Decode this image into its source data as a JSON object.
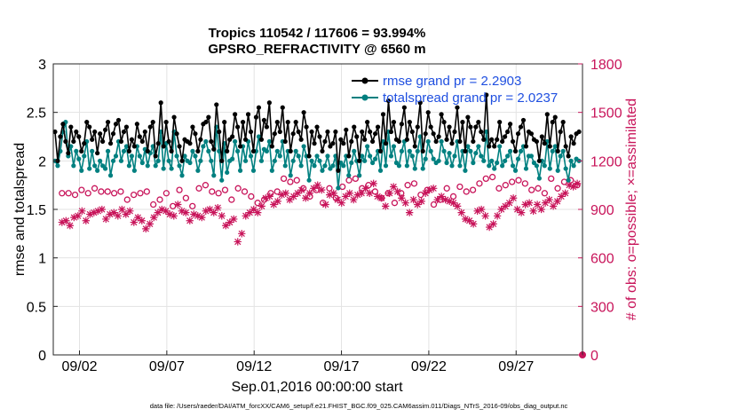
{
  "chart_data": {
    "type": "line",
    "title_line1": "Tropics 110542 / 117606 = 93.994%",
    "title_line2": "GPSRO_REFRACTIVITY @ 6560 m",
    "xlabel": "Sep.01,2016 00:00:00 start",
    "ylabel_left": "rmse and totalspread",
    "ylabel_right": "# of obs: o=possible; ×=assimilated",
    "x_ticks": [
      "09/02",
      "09/07",
      "09/12",
      "09/17",
      "09/22",
      "09/27"
    ],
    "y_left_ticks": [
      "0",
      "0.5",
      "1",
      "1.5",
      "2",
      "2.5",
      "3"
    ],
    "y_right_ticks": [
      "0",
      "300",
      "600",
      "900",
      "1200",
      "1500",
      "1800"
    ],
    "ylim_left": [
      0,
      3
    ],
    "ylim_right": [
      0,
      1800
    ],
    "xlim_days": [
      0.5,
      30.8
    ],
    "footnote": "data file: /Users/raeder/DAI/ATM_forcXX/CAM6_setup/f.e21.FHIST_BGC.f09_025.CAM6assim.011/Diags_NTrS_2016-09/obs_diag_output.nc",
    "colors": {
      "rmse": "#000000",
      "spread": "#008080",
      "obs": "#c8145a",
      "legend_text": "#1f4fe0"
    },
    "legend": [
      {
        "name": "rmse",
        "label": "rmse grand pr = 2.2903"
      },
      {
        "name": "spread",
        "label": "totalspread grand pr = 2.0237"
      }
    ],
    "series": [
      {
        "name": "rmse",
        "values": [
          2.3,
          2.0,
          2.25,
          2.38,
          2.2,
          2.08,
          2.35,
          2.2,
          2.3,
          2.25,
          2.1,
          2.18,
          2.4,
          2.35,
          2.22,
          2.3,
          2.08,
          2.28,
          2.2,
          2.32,
          2.4,
          2.18,
          2.28,
          2.38,
          2.42,
          2.2,
          2.3,
          2.35,
          2.1,
          2.22,
          2.15,
          2.38,
          2.25,
          2.2,
          2.3,
          2.1,
          2.35,
          2.4,
          2.05,
          2.18,
          2.6,
          2.15,
          2.4,
          2.2,
          2.1,
          2.45,
          2.28,
          2.15,
          2.0,
          2.22,
          2.2,
          2.18,
          2.35,
          2.28,
          2.1,
          2.22,
          2.38,
          2.4,
          2.45,
          2.2,
          2.12,
          2.58,
          2.3,
          2.0,
          2.4,
          2.1,
          2.22,
          2.25,
          2.48,
          2.35,
          2.15,
          2.4,
          2.22,
          2.48,
          2.3,
          2.1,
          2.45,
          2.55,
          2.22,
          2.42,
          2.35,
          2.6,
          2.15,
          2.28,
          2.4,
          2.3,
          2.55,
          2.2,
          2.4,
          2.1,
          2.28,
          2.4,
          2.3,
          2.22,
          2.5,
          2.35,
          2.05,
          2.3,
          2.18,
          2.35,
          2.25,
          2.1,
          2.2,
          2.3,
          2.15,
          2.18,
          2.3,
          1.9,
          2.22,
          2.18,
          2.32,
          2.05,
          2.2,
          2.35,
          2.25,
          2.0,
          2.3,
          2.22,
          2.4,
          2.3,
          2.2,
          2.28,
          2.35,
          2.1,
          2.48,
          2.18,
          2.62,
          2.3,
          2.4,
          2.22,
          2.2,
          2.38,
          2.55,
          2.22,
          2.4,
          2.3,
          2.15,
          2.35,
          2.6,
          2.1,
          2.28,
          2.5,
          2.35,
          2.28,
          2.2,
          2.25,
          2.48,
          2.4,
          2.22,
          2.35,
          2.18,
          2.3,
          2.55,
          2.2,
          2.4,
          2.1,
          2.45,
          2.35,
          2.2,
          2.35,
          2.4,
          2.3,
          2.22,
          2.68,
          2.15,
          2.22,
          2.15,
          2.22,
          2.4,
          2.2,
          2.25,
          2.3,
          2.38,
          2.2,
          2.1,
          2.28,
          2.35,
          2.42,
          2.15,
          2.3,
          2.28,
          2.22,
          2.2,
          2.0,
          2.25,
          2.18,
          2.48,
          2.15,
          2.4,
          2.45,
          2.1,
          2.3,
          2.4,
          2.15,
          2.05,
          2.25,
          2.18,
          2.28,
          2.3
        ]
      },
      {
        "name": "spread",
        "values": [
          2.0,
          1.95,
          2.1,
          2.3,
          2.4,
          2.05,
          2.15,
          1.95,
          2.1,
          2.02,
          1.9,
          2.05,
          2.2,
          1.92,
          2.1,
          1.95,
          1.9,
          2.0,
          1.95,
          1.92,
          2.1,
          1.85,
          2.0,
          2.05,
          2.2,
          2.0,
          2.1,
          2.15,
          1.95,
          2.05,
          1.9,
          2.15,
          2.05,
          1.98,
          2.12,
          1.95,
          2.08,
          2.15,
          1.95,
          2.0,
          2.3,
          1.92,
          2.18,
          2.0,
          1.92,
          2.3,
          2.05,
          1.95,
          1.85,
          2.05,
          2.0,
          1.98,
          2.1,
          2.05,
          1.9,
          2.0,
          2.15,
          2.2,
          2.1,
          2.0,
          1.85,
          2.35,
          2.1,
          1.8,
          2.18,
          1.88,
          2.0,
          2.02,
          2.2,
          2.1,
          1.9,
          2.15,
          2.0,
          2.2,
          2.05,
          1.9,
          2.1,
          2.25,
          2.0,
          2.12,
          2.1,
          2.2,
          1.9,
          2.0,
          2.1,
          2.05,
          2.2,
          1.95,
          2.1,
          1.85,
          2.0,
          2.1,
          2.05,
          1.95,
          2.15,
          2.05,
          1.8,
          2.0,
          1.95,
          2.05,
          2.0,
          1.9,
          1.95,
          2.05,
          1.92,
          1.95,
          2.05,
          1.72,
          1.98,
          1.95,
          2.05,
          1.85,
          1.98,
          2.1,
          2.0,
          1.85,
          2.05,
          2.0,
          2.15,
          2.05,
          1.98,
          2.02,
          2.1,
          1.9,
          2.2,
          1.95,
          2.3,
          2.05,
          2.15,
          1.98,
          1.95,
          2.1,
          2.2,
          1.95,
          2.1,
          2.05,
          1.92,
          2.1,
          2.25,
          1.92,
          2.02,
          2.2,
          2.1,
          2.02,
          1.98,
          2.0,
          2.2,
          2.1,
          1.98,
          2.08,
          1.95,
          2.05,
          2.2,
          1.95,
          2.1,
          1.9,
          2.15,
          2.1,
          1.98,
          2.08,
          2.15,
          2.05,
          2.0,
          2.3,
          1.95,
          2.0,
          1.92,
          1.98,
          2.15,
          1.95,
          2.0,
          2.05,
          2.1,
          1.95,
          1.9,
          2.02,
          2.1,
          2.15,
          1.92,
          2.05,
          2.05,
          1.98,
          1.95,
          1.82,
          2.0,
          1.95,
          2.2,
          1.92,
          2.1,
          2.15,
          1.9,
          2.05,
          2.1,
          1.92,
          1.8,
          2.0,
          1.95,
          2.02,
          2.0
        ]
      },
      {
        "name": "obs_possible",
        "values": [
          1000,
          1000,
          990,
          1020,
          1000,
          1030,
          1010,
          1010,
          1000,
          1010,
          960,
          990,
          1000,
          1010,
          930,
          960,
          1000,
          920,
          1020,
          970,
          920,
          1030,
          1050,
          1010,
          1000,
          1020,
          960,
          1030,
          1010,
          980,
          940,
          960,
          1000,
          1010,
          1090,
          1070,
          1080,
          1030,
          980,
          1020,
          940,
          1030,
          970,
          1040,
          1080,
          1090,
          1030,
          1050,
          1010,
          970,
          1000,
          940,
          1000,
          1050,
          1060,
          990,
          1020,
          930,
          960,
          1030,
          980,
          1040,
          1010,
          1020,
          1060,
          1090,
          1100,
          1030,
          1050,
          1070,
          1080,
          1060,
          1020,
          1030,
          1000,
          1090,
          1030,
          1070,
          1080,
          1050
        ]
      },
      {
        "name": "obs_assimilated",
        "values": [
          820,
          830,
          800,
          850,
          860,
          890,
          830,
          870,
          880,
          890,
          900,
          840,
          870,
          880,
          860,
          900,
          870,
          890,
          820,
          850,
          830,
          780,
          810,
          850,
          880,
          900,
          890,
          870,
          860,
          930,
          890,
          880,
          830,
          870,
          860,
          850,
          890,
          900,
          880,
          910,
          860,
          800,
          820,
          840,
          700,
          750,
          860,
          880,
          900,
          880,
          920,
          970,
          980,
          930,
          950,
          990,
          1000,
          960,
          980,
          1000,
          1020,
          970,
          1000,
          1030,
          1050,
          1020,
          930,
          990,
          1000,
          960,
          940,
          980,
          1000,
          960,
          990,
          1000,
          1030,
          1000,
          1060,
          980,
          970,
          920,
          1000,
          1040,
          1010,
          970,
          940,
          880,
          960,
          930,
          950,
          1000,
          1020,
          1030,
          960,
          980,
          960,
          950,
          940,
          920,
          880,
          840,
          830,
          810,
          890,
          900,
          860,
          790,
          810,
          860,
          900,
          920,
          940,
          970,
          900,
          880,
          930,
          940,
          890,
          930,
          900,
          940,
          960,
          920,
          950,
          980,
          1000,
          1050,
          1040,
          1060
        ]
      }
    ]
  }
}
